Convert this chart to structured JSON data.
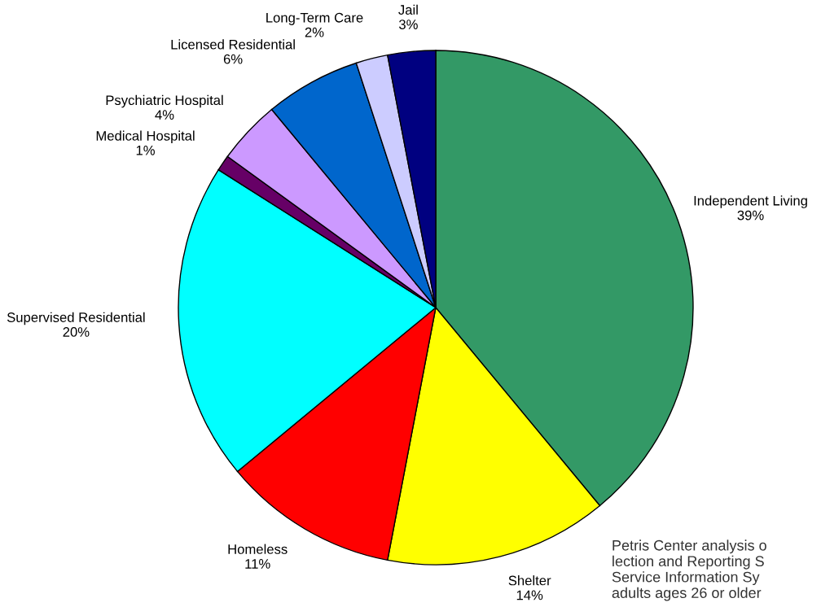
{
  "chart_data": {
    "type": "pie",
    "categories": [
      "Independent Living",
      "Shelter",
      "Homeless",
      "Supervised Residential",
      "Medical Hospital",
      "Psychiatric Hospital",
      "Licensed Residential",
      "Long-Term Care",
      "Jail"
    ],
    "values": [
      39,
      14,
      11,
      20,
      1,
      4,
      6,
      2,
      3
    ],
    "colors": [
      "#339966",
      "#ffff00",
      "#ff0000",
      "#00ffff",
      "#660066",
      "#cc99ff",
      "#0066cc",
      "#ccccff",
      "#000080"
    ],
    "value_labels": [
      "39%",
      "14%",
      "11%",
      "20%",
      "1%",
      "4%",
      "6%",
      "2%",
      "3%"
    ],
    "annotations": [
      "Petris Center analysis o\nlection and Reporting S\nService Information Sy\nadults ages 26 or older"
    ]
  }
}
